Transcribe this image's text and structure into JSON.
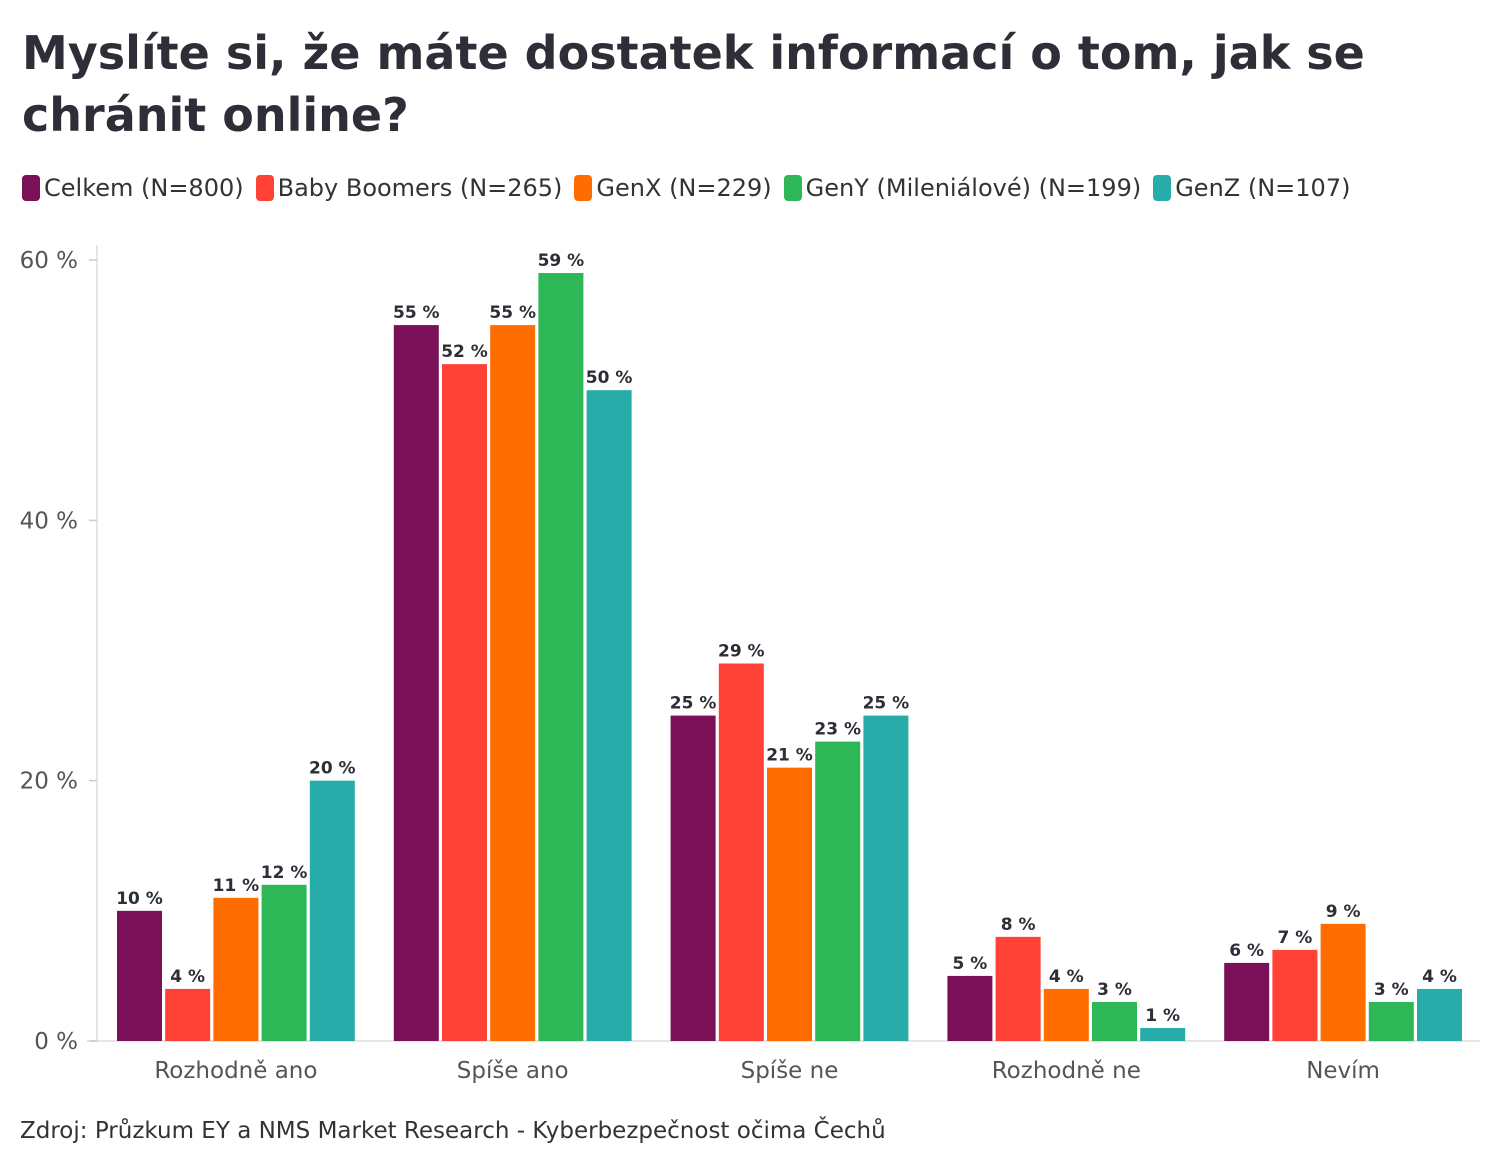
{
  "title": "Myslíte si, že máte dostatek informací o tom, jak se chránit online?",
  "source": "Zdroj: Průzkum EY a NMS Market Research - Kyberbezpečnost očima Čechů",
  "chart_data": {
    "type": "bar",
    "title": "Myslíte si, že máte dostatek informací o tom, jak se chránit online?",
    "xlabel": "",
    "ylabel": "",
    "ylim": [
      0,
      60
    ],
    "yticks": [
      0,
      20,
      40,
      60
    ],
    "ytick_labels": [
      "0 %",
      "20 %",
      "40 %",
      "60 %"
    ],
    "grid": false,
    "legend_placement": "top",
    "categories": [
      "Rozhodně ano",
      "Spíše ano",
      "Spíše ne",
      "Rozhodně ne",
      "Nevím"
    ],
    "series": [
      {
        "name": "Celkem (N=800)",
        "color": "#7a1158",
        "values": [
          10,
          55,
          25,
          5,
          6
        ]
      },
      {
        "name": "Baby Boomers (N=265)",
        "color": "#ff4136",
        "values": [
          4,
          52,
          29,
          8,
          7
        ]
      },
      {
        "name": "GenX (N=229)",
        "color": "#ff6d00",
        "values": [
          11,
          55,
          21,
          4,
          9
        ]
      },
      {
        "name": "GenY (Mileniálové) (N=199)",
        "color": "#2db757",
        "values": [
          12,
          59,
          23,
          3,
          3
        ]
      },
      {
        "name": "GenZ (N=107)",
        "color": "#27acaa",
        "values": [
          20,
          50,
          25,
          1,
          4
        ]
      }
    ],
    "value_suffix": " %"
  }
}
